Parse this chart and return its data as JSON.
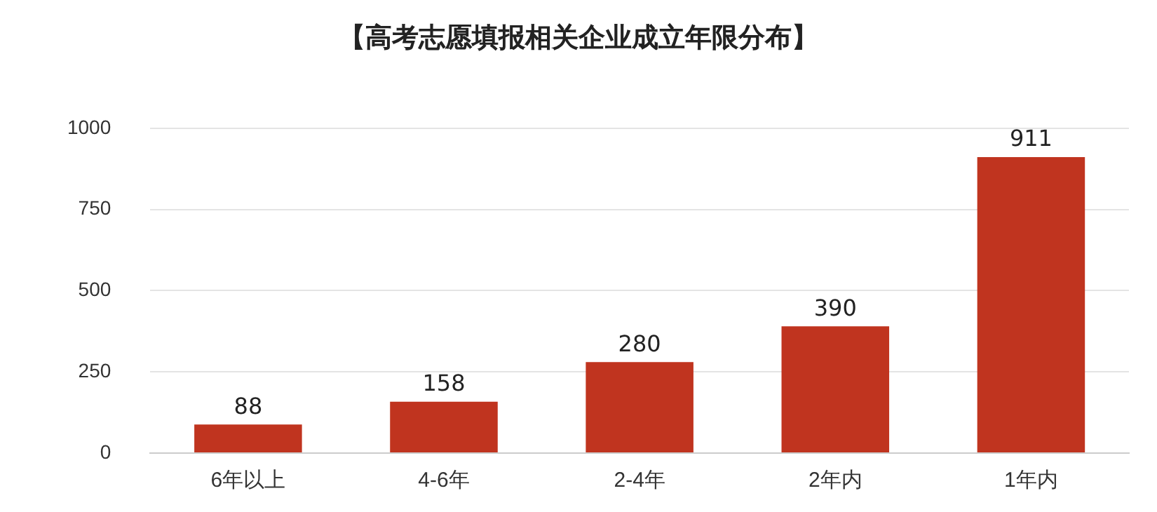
{
  "chart_data": {
    "type": "bar",
    "title": "【高考志愿填报相关企业成立年限分布】",
    "categories": [
      "6年以上",
      "4-6年",
      "2-4年",
      "2年内",
      "1年内"
    ],
    "values": [
      88,
      158,
      280,
      390,
      911
    ],
    "color": "#c0341f",
    "ylim": [
      0,
      1000
    ],
    "yticks": [
      0,
      250,
      500,
      750,
      1000
    ],
    "grid": "y",
    "data_labels": true,
    "legend": false
  }
}
